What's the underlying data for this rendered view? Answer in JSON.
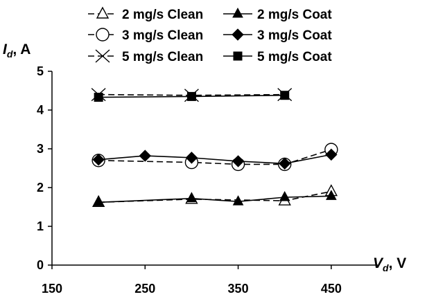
{
  "chart_data": {
    "type": "line",
    "xlabel": "V",
    "xlabel_sub": "d",
    "xlabel_unit": ", V",
    "ylabel": "I",
    "ylabel_sub": "d",
    "ylabel_unit": ", A",
    "xlim": [
      150,
      500
    ],
    "ylim": [
      0,
      5
    ],
    "x_ticks": [
      150,
      250,
      350,
      450
    ],
    "y_ticks": [
      0,
      1,
      2,
      3,
      4,
      5
    ],
    "grid": false,
    "legend_position": "top",
    "series": [
      {
        "name": "2 mg/s Clean",
        "marker": "triangle-open",
        "line": "dashed",
        "x": [
          200,
          300,
          400,
          450
        ],
        "y": [
          1.62,
          1.7,
          1.66,
          1.9
        ]
      },
      {
        "name": "2 mg/s Coat",
        "marker": "triangle-filled",
        "line": "solid",
        "x": [
          200,
          300,
          350,
          400,
          450
        ],
        "y": [
          1.62,
          1.72,
          1.64,
          1.75,
          1.78
        ]
      },
      {
        "name": "3 mg/s Clean",
        "marker": "circle-open",
        "line": "dashed",
        "x": [
          200,
          300,
          350,
          400,
          450
        ],
        "y": [
          2.7,
          2.65,
          2.6,
          2.6,
          2.98
        ]
      },
      {
        "name": "3 mg/s Coat",
        "marker": "diamond-filled",
        "line": "solid",
        "x": [
          200,
          250,
          300,
          350,
          400,
          450
        ],
        "y": [
          2.72,
          2.82,
          2.77,
          2.68,
          2.62,
          2.85
        ]
      },
      {
        "name": "5 mg/s Clean",
        "marker": "x",
        "line": "dashed",
        "x": [
          200,
          300,
          400
        ],
        "y": [
          4.4,
          4.38,
          4.4
        ]
      },
      {
        "name": "5 mg/s Coat",
        "marker": "square-filled",
        "line": "solid",
        "x": [
          200,
          300,
          400
        ],
        "y": [
          4.33,
          4.35,
          4.38
        ]
      }
    ]
  }
}
